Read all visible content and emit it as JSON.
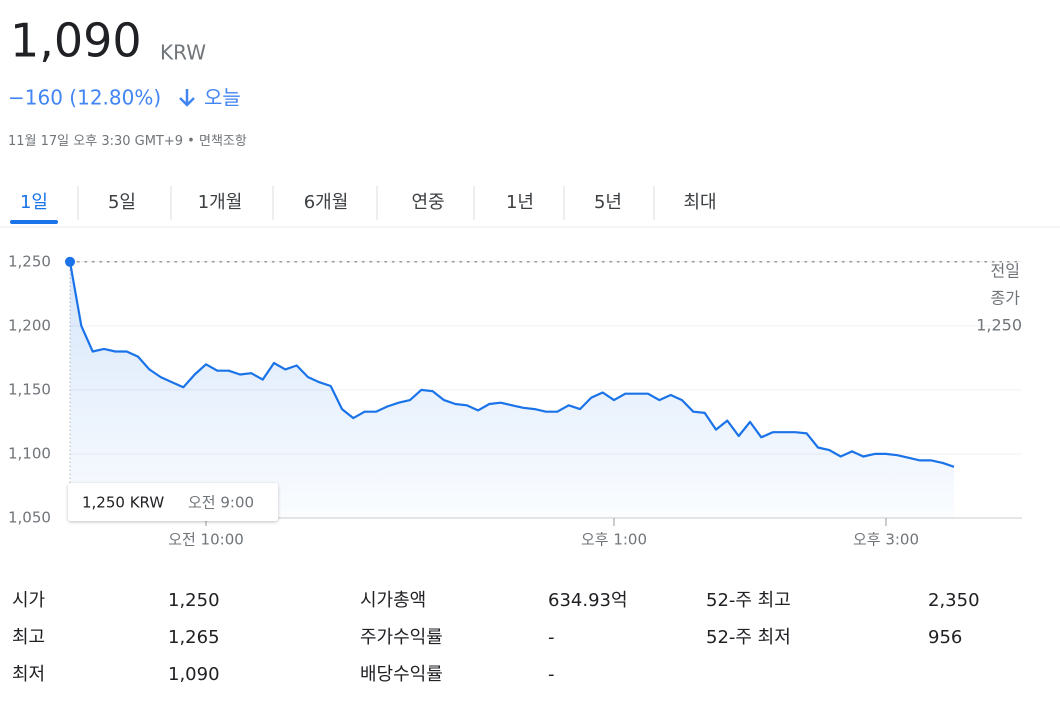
{
  "header": {
    "price": "1,090",
    "currency": "KRW",
    "change": "−160 (12.80%)",
    "period": "오늘",
    "timestamp": "11월 17일 오후 3:30 GMT+9",
    "disclaimer": "면책조항"
  },
  "tabs": [
    "1일",
    "5일",
    "1개월",
    "6개월",
    "연중",
    "1년",
    "5년",
    "최대"
  ],
  "active_tab": 0,
  "chart_data": {
    "type": "line",
    "color": "#1a73e8",
    "x": [
      540,
      545,
      550,
      555,
      560,
      565,
      570,
      575,
      580,
      585,
      590,
      595,
      600,
      605,
      610,
      615,
      620,
      625,
      630,
      635,
      640,
      645,
      650,
      655,
      660,
      665,
      670,
      675,
      680,
      685,
      690,
      695,
      700,
      705,
      710,
      715,
      720,
      725,
      730,
      735,
      740,
      745,
      750,
      755,
      760,
      765,
      770,
      775,
      780,
      785,
      790,
      795,
      800,
      805,
      810,
      815,
      820,
      825,
      830,
      835,
      840,
      845,
      850,
      855,
      860,
      865,
      870,
      875,
      880,
      885,
      890,
      895,
      900,
      905,
      910,
      915,
      920,
      925,
      930
    ],
    "values": [
      1250,
      1200,
      1180,
      1182,
      1180,
      1180,
      1176,
      1166,
      1160,
      1156,
      1152,
      1162,
      1170,
      1165,
      1165,
      1162,
      1163,
      1158,
      1171,
      1166,
      1169,
      1160,
      1156,
      1153,
      1135,
      1128,
      1133,
      1133,
      1137,
      1140,
      1142,
      1150,
      1149,
      1142,
      1139,
      1138,
      1134,
      1139,
      1140,
      1138,
      1136,
      1135,
      1133,
      1133,
      1138,
      1135,
      1144,
      1148,
      1142,
      1147,
      1147,
      1147,
      1142,
      1146,
      1142,
      1133,
      1132,
      1119,
      1126,
      1114,
      1125,
      1113,
      1117,
      1117,
      1117,
      1116,
      1105,
      1103,
      1098,
      1102,
      1098,
      1100,
      1100,
      1099,
      1097,
      1095,
      1095,
      1093,
      1090
    ],
    "xlim": [
      540,
      960
    ],
    "xticks": [
      {
        "value": 600,
        "label": "오전 10:00"
      },
      {
        "value": 780,
        "label": "오후 1:00"
      },
      {
        "value": 900,
        "label": "오후 3:00"
      }
    ],
    "ylim": [
      1050,
      1267
    ],
    "yticks": [
      {
        "value": 1050,
        "label": "1,050"
      },
      {
        "value": 1100,
        "label": "1,100"
      },
      {
        "value": 1150,
        "label": "1,150"
      },
      {
        "value": 1200,
        "label": "1,200"
      },
      {
        "value": 1250,
        "label": "1,250"
      }
    ],
    "grid": true,
    "reference_line": {
      "label": [
        "전일",
        "종가"
      ],
      "value": 1250,
      "value_label": "1,250"
    },
    "tooltip": {
      "price": "1,250 KRW",
      "time": "오전 9:00"
    }
  },
  "stats": [
    [
      {
        "label": "시가",
        "value": "1,250"
      },
      {
        "label": "최고",
        "value": "1,265"
      },
      {
        "label": "최저",
        "value": "1,090"
      }
    ],
    [
      {
        "label": "시가총액",
        "value": "634.93억"
      },
      {
        "label": "주가수익률",
        "value": "-"
      },
      {
        "label": "배당수익률",
        "value": "-"
      }
    ],
    [
      {
        "label": "52-주 최고",
        "value": "2,350"
      },
      {
        "label": "52-주 최저",
        "value": "956"
      }
    ]
  ]
}
